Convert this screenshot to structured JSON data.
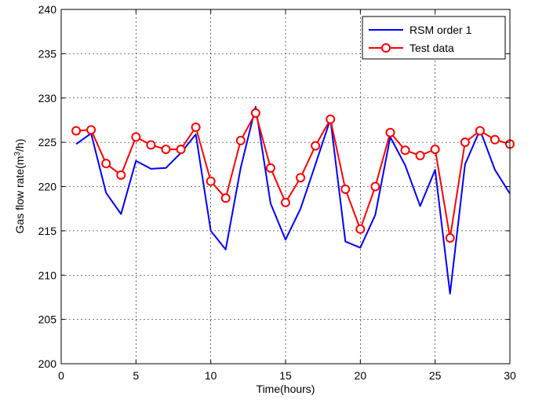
{
  "chart_data": {
    "type": "line",
    "xlabel": "Time(hours)",
    "ylabel_prefix": "Gas flow rate(m",
    "ylabel_sup": "3",
    "ylabel_suffix": "/h)",
    "xlim": [
      0,
      30
    ],
    "ylim": [
      200,
      240
    ],
    "xticks": [
      0,
      5,
      10,
      15,
      20,
      25,
      30
    ],
    "yticks": [
      200,
      205,
      210,
      215,
      220,
      225,
      230,
      235,
      240
    ],
    "grid": true,
    "legend_position": "top-right",
    "x": [
      1,
      2,
      3,
      4,
      5,
      6,
      7,
      8,
      9,
      10,
      11,
      12,
      13,
      14,
      15,
      16,
      17,
      18,
      19,
      20,
      21,
      22,
      23,
      24,
      25,
      26,
      27,
      28,
      29,
      30
    ],
    "series": [
      {
        "name": "RSM order 1",
        "color": "#0000ff",
        "marker": "none",
        "values": [
          224.8,
          226.0,
          219.3,
          216.9,
          222.9,
          222.0,
          222.1,
          223.8,
          225.9,
          215.0,
          212.9,
          222.1,
          229.0,
          218.1,
          214.0,
          217.5,
          222.5,
          227.6,
          213.8,
          213.1,
          216.8,
          225.6,
          222.4,
          217.8,
          221.9,
          207.9,
          222.5,
          226.4,
          221.9,
          219.2
        ]
      },
      {
        "name": "Test data",
        "color": "#ff0000",
        "marker": "circle",
        "values": [
          226.3,
          226.4,
          222.6,
          221.3,
          225.6,
          224.7,
          224.2,
          224.2,
          226.7,
          220.6,
          218.7,
          225.2,
          228.3,
          222.1,
          218.2,
          221.0,
          224.6,
          227.6,
          219.7,
          215.2,
          220.0,
          226.1,
          224.1,
          223.5,
          224.2,
          214.2,
          225.0,
          226.3,
          225.3,
          224.8
        ]
      }
    ]
  }
}
